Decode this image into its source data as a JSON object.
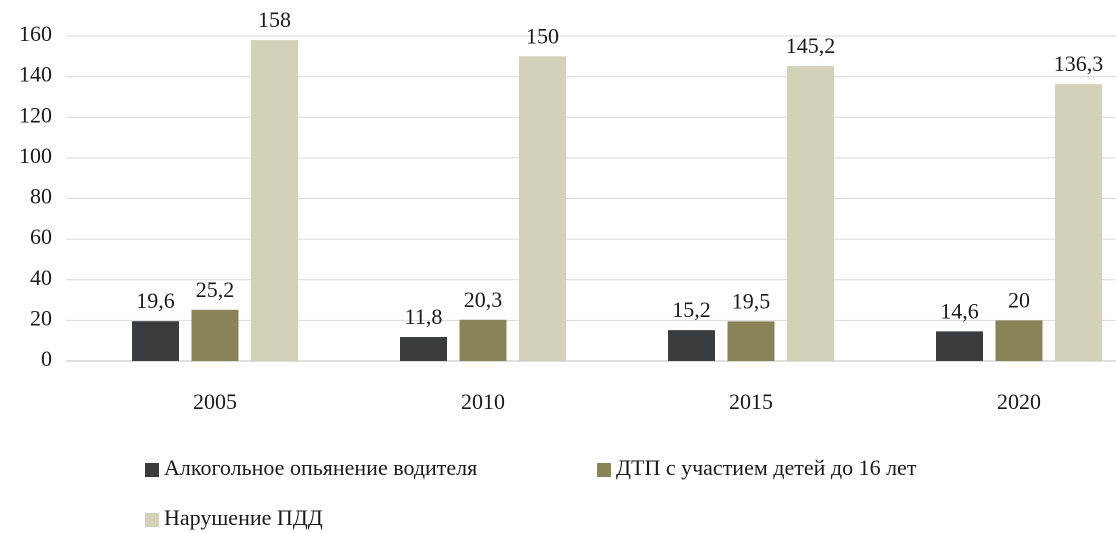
{
  "chart_data": {
    "type": "bar",
    "categories": [
      "2005",
      "2010",
      "2015",
      "2020"
    ],
    "series": [
      {
        "name": "Алкогольное опьянение водителя",
        "color": "#3a3d40",
        "values": [
          19.6,
          11.8,
          15.2,
          14.6
        ],
        "value_labels": [
          "19,6",
          "11,8",
          "15,2",
          "14,6"
        ]
      },
      {
        "name": "ДТП с участием детей до 16 лет",
        "color": "#8a8358",
        "values": [
          25.2,
          20.3,
          19.5,
          20
        ],
        "value_labels": [
          "25,2",
          "20,3",
          "19,5",
          "20"
        ]
      },
      {
        "name": "Нарушение ПДД",
        "color": "#d4d1b9",
        "values": [
          158,
          150,
          145.2,
          136.3
        ],
        "value_labels": [
          "158",
          "150",
          "145,2",
          "136,3"
        ]
      }
    ],
    "ylim": [
      0,
      160
    ],
    "yticks": [
      0,
      20,
      40,
      60,
      80,
      100,
      120,
      140,
      160
    ],
    "grid": true
  }
}
